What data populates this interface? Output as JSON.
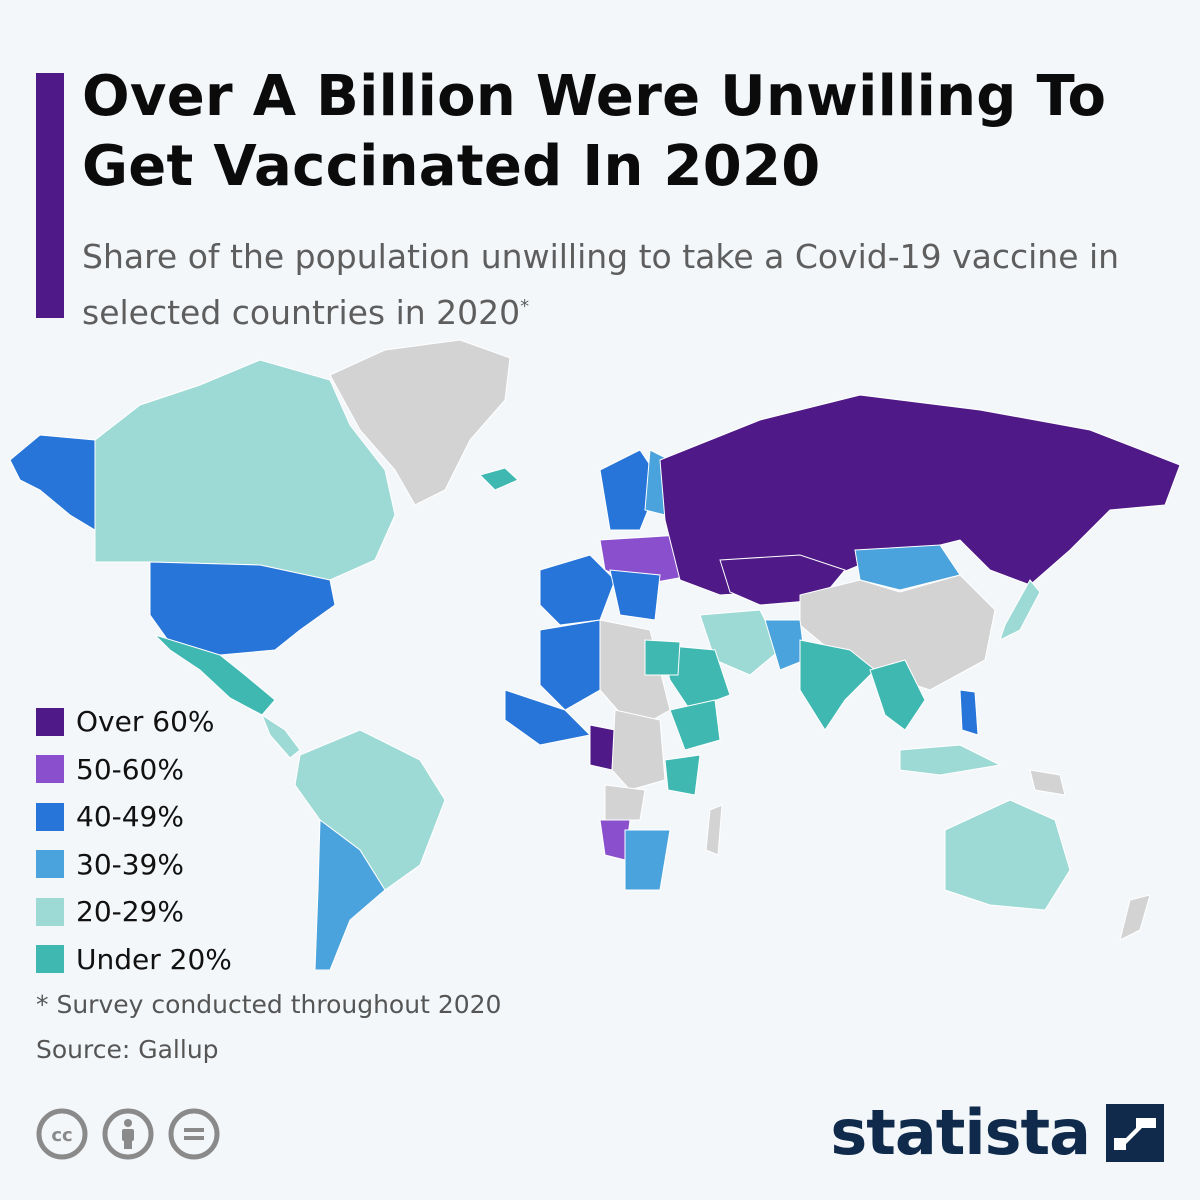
{
  "header": {
    "title": "Over A Billion Were Unwilling To Get Vaccinated In 2020",
    "subtitle": "Share of the population unwilling to take a Covid-19 vaccine in selected countries in 2020",
    "subtitle_mark": "*",
    "accent_color": "#4f1a87"
  },
  "legend": {
    "items": [
      {
        "label": "Over 60%",
        "color": "#4f1a87"
      },
      {
        "label": "50-60%",
        "color": "#8a4fcc"
      },
      {
        "label": "40-49%",
        "color": "#2775d8"
      },
      {
        "label": "30-39%",
        "color": "#4aa3dc"
      },
      {
        "label": "20-29%",
        "color": "#9dd9d5"
      },
      {
        "label": "Under 20%",
        "color": "#3fb8b2"
      }
    ],
    "no_data_color": "#d3d3d3"
  },
  "footer": {
    "footnote": "* Survey conducted throughout 2020",
    "source": "Source: Gallup",
    "license_icons": [
      "cc-icon",
      "attribution-icon",
      "no-derivatives-icon"
    ],
    "brand": "statista",
    "brand_color": "#0f2a4a"
  },
  "map": {
    "regions": [
      {
        "name": "Russia",
        "category": "Over 60%"
      },
      {
        "name": "Cameroon",
        "category": "Over 60%"
      },
      {
        "name": "Gabon",
        "category": "Over 60%"
      },
      {
        "name": "Jordan",
        "category": "Over 60%"
      },
      {
        "name": "Belarus",
        "category": "50-60%"
      },
      {
        "name": "Ukraine",
        "category": "50-60%"
      },
      {
        "name": "Namibia",
        "category": "50-60%"
      },
      {
        "name": "United States",
        "category": "40-49%"
      },
      {
        "name": "Alaska",
        "category": "40-49%"
      },
      {
        "name": "Algeria",
        "category": "40-49%"
      },
      {
        "name": "Mali",
        "category": "40-49%"
      },
      {
        "name": "Philippines",
        "category": "40-49%"
      },
      {
        "name": "France",
        "category": "40-49%"
      },
      {
        "name": "Sweden",
        "category": "40-49%"
      },
      {
        "name": "Kazakhstan",
        "category": "40-49%"
      },
      {
        "name": "Argentina",
        "category": "30-39%"
      },
      {
        "name": "South Africa",
        "category": "30-39%"
      },
      {
        "name": "Mongolia",
        "category": "30-39%"
      },
      {
        "name": "Finland",
        "category": "30-39%"
      },
      {
        "name": "Pakistan",
        "category": "30-39%"
      },
      {
        "name": "Canada",
        "category": "20-29%"
      },
      {
        "name": "Brazil",
        "category": "20-29%"
      },
      {
        "name": "Australia",
        "category": "20-29%"
      },
      {
        "name": "Iran",
        "category": "20-29%"
      },
      {
        "name": "Japan",
        "category": "20-29%"
      },
      {
        "name": "Indonesia",
        "category": "20-29%"
      },
      {
        "name": "Mexico",
        "category": "Under 20%"
      },
      {
        "name": "India",
        "category": "Under 20%"
      },
      {
        "name": "Egypt",
        "category": "Under 20%"
      },
      {
        "name": "Ethiopia",
        "category": "Under 20%"
      },
      {
        "name": "Tanzania",
        "category": "Under 20%"
      },
      {
        "name": "Iceland",
        "category": "Under 20%"
      },
      {
        "name": "Saudi Arabia",
        "category": "Under 20%"
      },
      {
        "name": "Vietnam",
        "category": "Under 20%"
      },
      {
        "name": "Greenland",
        "category": "no data"
      },
      {
        "name": "China",
        "category": "no data"
      },
      {
        "name": "Libya",
        "category": "no data"
      },
      {
        "name": "Sudan",
        "category": "no data"
      },
      {
        "name": "DR Congo",
        "category": "no data"
      },
      {
        "name": "Angola",
        "category": "no data"
      },
      {
        "name": "Madagascar",
        "category": "no data"
      },
      {
        "name": "New Zealand",
        "category": "no data"
      },
      {
        "name": "Papua New Guinea",
        "category": "no data"
      }
    ]
  }
}
